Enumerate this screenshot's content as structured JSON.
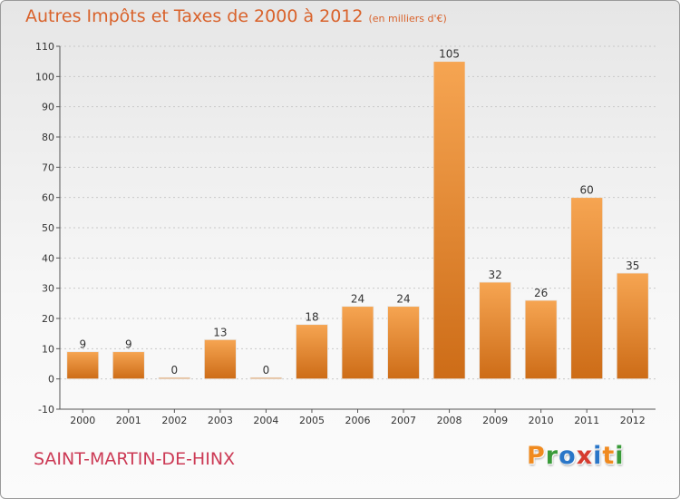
{
  "title": "Autres Impôts et Taxes de 2000 à 2012",
  "subtitle": "(en milliers d'€)",
  "commune": "SAINT-MARTIN-DE-HINX",
  "brand": {
    "letters": [
      "P",
      "r",
      "o",
      "x",
      "i",
      "t",
      "i"
    ],
    "colors": [
      "#f08a1f",
      "#3a9b3a",
      "#2a76c8",
      "#d63b2f",
      "#2a76c8",
      "#f08a1f",
      "#3a9b3a"
    ]
  },
  "colors": {
    "bar": "#f0922f",
    "bar_dark": "#cc6a14",
    "title": "#d9622b",
    "commune": "#cc3a55"
  },
  "chart_data": {
    "type": "bar",
    "categories": [
      "2000",
      "2001",
      "2002",
      "2003",
      "2004",
      "2005",
      "2006",
      "2007",
      "2008",
      "2009",
      "2010",
      "2011",
      "2012"
    ],
    "values": [
      9,
      9,
      0,
      13,
      0,
      18,
      24,
      24,
      105,
      32,
      26,
      60,
      35
    ],
    "ylim": [
      -10,
      110
    ],
    "yticks": [
      -10,
      0,
      10,
      20,
      30,
      40,
      50,
      60,
      70,
      80,
      90,
      100,
      110
    ],
    "grid": true
  }
}
